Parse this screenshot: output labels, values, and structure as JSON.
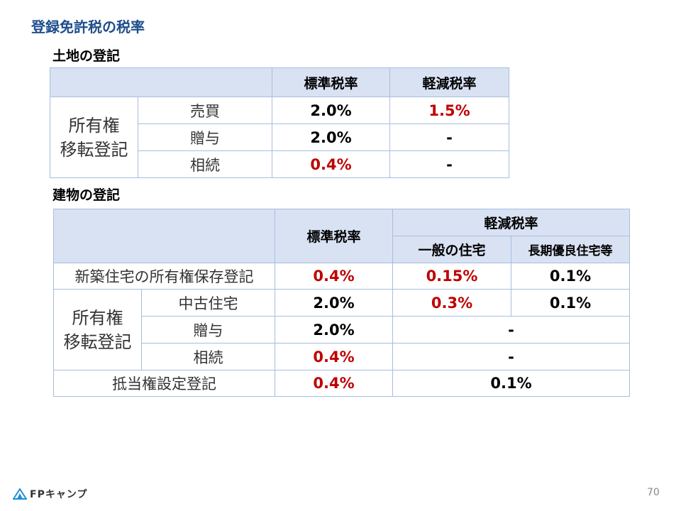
{
  "title": "登録免許税の税率",
  "land": {
    "heading": "土地の登記",
    "col_standard": "標準税率",
    "col_reduced": "軽減税率",
    "group_label": "所有権\n移転登記",
    "rows": [
      {
        "label": "売買",
        "standard": "2.0%",
        "reduced": "1.5%"
      },
      {
        "label": "贈与",
        "standard": "2.0%",
        "reduced": "-"
      },
      {
        "label": "相続",
        "standard": "0.4%",
        "reduced": "-"
      }
    ]
  },
  "building": {
    "heading": "建物の登記",
    "col_standard": "標準税率",
    "col_reduced": "軽減税率",
    "col_general": "一般の住宅",
    "col_long": "長期優良住宅等",
    "row_new": {
      "label": "新築住宅の所有権保存登記",
      "standard": "0.4%",
      "general": "0.15%",
      "long": "0.1%"
    },
    "group_label": "所有権\n移転登記",
    "rows": [
      {
        "label": "中古住宅",
        "standard": "2.0%",
        "general": "0.3%",
        "long": "0.1%"
      },
      {
        "label": "贈与",
        "standard": "2.0%",
        "reduced": "-"
      },
      {
        "label": "相続",
        "standard": "0.4%",
        "reduced": "-"
      }
    ],
    "row_mortgage": {
      "label": "抵当権設定登記",
      "standard": "0.4%",
      "reduced": "0.1%"
    }
  },
  "footer": {
    "logo_text": "FPキャンプ",
    "page_number": "70"
  },
  "colors": {
    "title": "#1f4e8c",
    "header_bg": "#d9e2f3",
    "border": "#a8bde0",
    "red": "#c00000"
  }
}
